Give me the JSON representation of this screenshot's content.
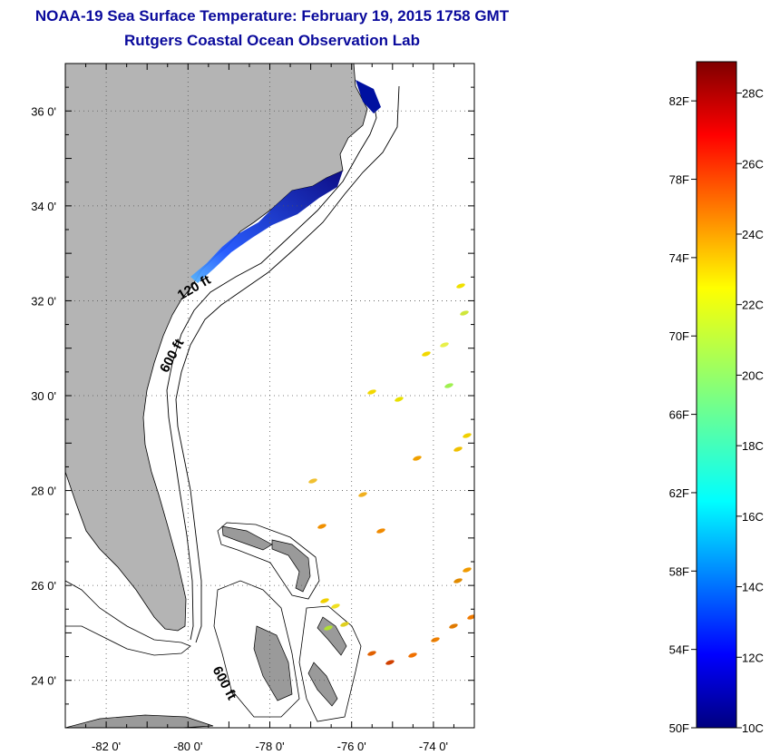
{
  "title": {
    "line1": "NOAA-19 Sea Surface Temperature:  February 19, 2015 1758 GMT",
    "line2": "Rutgers Coastal Ocean Observation Lab"
  },
  "map": {
    "lon_range": [
      -83,
      -73
    ],
    "lat_range": [
      23,
      37
    ],
    "lon_ticks": [
      -82,
      -80,
      -78,
      -76,
      -74
    ],
    "lat_ticks": [
      24,
      26,
      28,
      30,
      32,
      34,
      36
    ],
    "lon_tick_labels": [
      "-82 0'",
      "-80 0'",
      "-78 0'",
      "-76 0'",
      "-74 0'"
    ],
    "lat_tick_labels": [
      "24 0'",
      "26 0'",
      "28 0'",
      "30 0'",
      "32 0'",
      "34 0'",
      "36 0'"
    ],
    "grid": "dotted",
    "contour_labels": [
      {
        "text": "120 ft",
        "lon": -79.8,
        "lat": 32.2
      },
      {
        "text": "600 ft",
        "lon": -80.3,
        "lat": 30.8
      },
      {
        "text": "600 ft",
        "lon": -79.2,
        "lat": 23.9
      }
    ],
    "colors": {
      "land": "#b4b4b4",
      "coast": "#000000",
      "grid": "#555555"
    }
  },
  "colorbar": {
    "min_f": 50,
    "max_f": 84,
    "f_labels": [
      "50F",
      "54F",
      "58F",
      "62F",
      "66F",
      "70F",
      "74F",
      "78F",
      "82F"
    ],
    "c_labels": [
      "10C",
      "12C",
      "14C",
      "16C",
      "18C",
      "20C",
      "22C",
      "24C",
      "26C",
      "28C"
    ]
  }
}
